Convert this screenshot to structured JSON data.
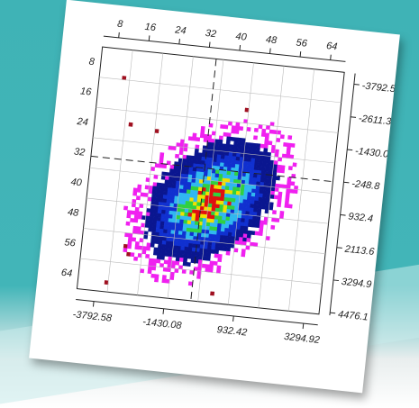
{
  "top_ticks": [
    "8",
    "16",
    "24",
    "32",
    "40",
    "48",
    "56",
    "64"
  ],
  "left_ticks": [
    "8",
    "16",
    "24",
    "32",
    "40",
    "48",
    "56",
    "64"
  ],
  "right_ticks": [
    "-3792.5",
    "-2611.3",
    "-1430.0",
    "-248.8",
    "932.4",
    "2113.6",
    "3294.9",
    "4476.1"
  ],
  "bottom_ticks": [
    "-3792.58",
    "-1430.08",
    "932.42",
    "3294.92"
  ]
}
